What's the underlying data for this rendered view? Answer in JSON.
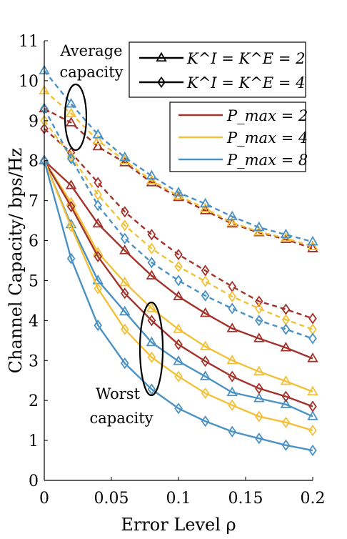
{
  "chart_data": {
    "type": "line",
    "xlabel": "Error Level ρ",
    "ylabel": "Channel Capacity/ bps/Hz",
    "xlim": [
      0,
      0.2
    ],
    "ylim": [
      0,
      11
    ],
    "xticks": [
      0,
      0.05,
      0.1,
      0.15,
      0.2
    ],
    "xtick_labels": [
      "0",
      "0.05",
      "0.1",
      "0.15",
      "0.2"
    ],
    "yticks": [
      0,
      1,
      2,
      3,
      4,
      5,
      6,
      7,
      8,
      9,
      10,
      11
    ],
    "ytick_labels": [
      "0",
      "1",
      "2",
      "3",
      "4",
      "5",
      "6",
      "7",
      "8",
      "9",
      "10",
      "11"
    ],
    "grid": false,
    "x": [
      0,
      0.02,
      0.04,
      0.06,
      0.08,
      0.1,
      0.12,
      0.14,
      0.16,
      0.18,
      0.2
    ],
    "legend_markers": [
      {
        "label": "K^I = K^E = 2",
        "marker": "triangle"
      },
      {
        "label": "K^I = K^E = 4",
        "marker": "diamond"
      }
    ],
    "legend_powers": [
      {
        "label": "P_max = 2",
        "color": "#a2322a"
      },
      {
        "label": "P_max = 4",
        "color": "#f3c139"
      },
      {
        "label": "P_max = 8",
        "color": "#4a92c4"
      }
    ],
    "annotations": {
      "average": [
        "Average",
        "capacity"
      ],
      "worst": [
        "Worst",
        "capacity"
      ]
    },
    "series": [
      {
        "power": 2,
        "color": "#a2322a",
        "marker": "triangle",
        "style": "dashed",
        "values": [
          9.3,
          8.95,
          8.35,
          7.95,
          7.45,
          7.08,
          6.75,
          6.42,
          6.2,
          6.03,
          5.8
        ]
      },
      {
        "power": 4,
        "color": "#f3c139",
        "marker": "triangle",
        "style": "dashed",
        "values": [
          9.75,
          9.18,
          8.5,
          8.0,
          7.5,
          7.12,
          6.8,
          6.45,
          6.22,
          6.06,
          5.85
        ]
      },
      {
        "power": 8,
        "color": "#4a92c4",
        "marker": "triangle",
        "style": "dashed",
        "values": [
          10.25,
          9.42,
          8.65,
          8.08,
          7.62,
          7.2,
          6.92,
          6.6,
          6.33,
          6.15,
          5.97
        ]
      },
      {
        "power": 2,
        "color": "#a2322a",
        "marker": "diamond",
        "style": "dashed",
        "values": [
          8.8,
          8.2,
          7.45,
          6.72,
          6.15,
          5.65,
          5.25,
          4.85,
          4.48,
          4.28,
          4.05
        ]
      },
      {
        "power": 4,
        "color": "#f3c139",
        "marker": "diamond",
        "style": "dashed",
        "values": [
          9.0,
          8.1,
          7.15,
          6.38,
          5.8,
          5.35,
          4.98,
          4.6,
          4.3,
          4.02,
          3.78
        ]
      },
      {
        "power": 8,
        "color": "#4a92c4",
        "marker": "diamond",
        "style": "dashed",
        "values": [
          9.3,
          8.05,
          6.88,
          6.05,
          5.45,
          5.0,
          4.62,
          4.3,
          4.0,
          3.78,
          3.55
        ]
      },
      {
        "power": 2,
        "color": "#a2322a",
        "marker": "triangle",
        "style": "solid",
        "values": [
          8.0,
          7.38,
          6.42,
          5.75,
          5.12,
          4.6,
          4.18,
          3.8,
          3.55,
          3.32,
          3.05
        ]
      },
      {
        "power": 4,
        "color": "#f3c139",
        "marker": "triangle",
        "style": "solid",
        "values": [
          8.0,
          6.95,
          5.7,
          4.95,
          4.3,
          3.78,
          3.35,
          3.0,
          2.72,
          2.48,
          2.22
        ]
      },
      {
        "power": 8,
        "color": "#4a92c4",
        "marker": "triangle",
        "style": "solid",
        "values": [
          8.0,
          6.4,
          5.0,
          4.22,
          3.45,
          2.98,
          2.6,
          2.2,
          2.05,
          1.9,
          1.6
        ]
      },
      {
        "power": 2,
        "color": "#a2322a",
        "marker": "diamond",
        "style": "solid",
        "values": [
          8.0,
          6.85,
          5.6,
          4.68,
          4.0,
          3.4,
          2.98,
          2.6,
          2.3,
          2.1,
          1.85
        ]
      },
      {
        "power": 4,
        "color": "#f3c139",
        "marker": "diamond",
        "style": "solid",
        "values": [
          8.0,
          6.35,
          4.8,
          3.78,
          3.08,
          2.6,
          2.18,
          1.88,
          1.6,
          1.45,
          1.25
        ]
      },
      {
        "power": 8,
        "color": "#4a92c4",
        "marker": "diamond",
        "style": "solid",
        "values": [
          8.0,
          5.55,
          3.88,
          2.93,
          2.28,
          1.8,
          1.48,
          1.22,
          1.05,
          0.88,
          0.75
        ]
      }
    ]
  }
}
